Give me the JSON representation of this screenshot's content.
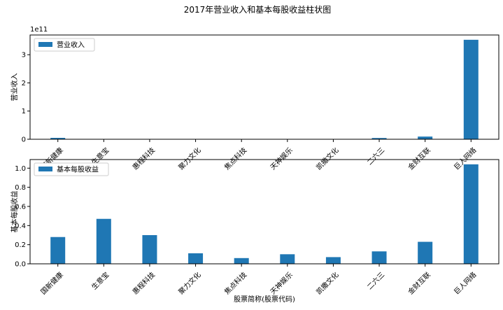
{
  "figure": {
    "title": "2017年营业收入和基本每股收益柱状图",
    "bar_color": "#1f77b4",
    "frame_color": "#000000",
    "background": "#ffffff"
  },
  "chart_data": [
    {
      "type": "bar",
      "categories": [
        "国新健康",
        "生意宝",
        "惠程科技",
        "聚力文化",
        "焦点科技",
        "天神娱乐",
        "凯撒文化",
        "二六三",
        "金财互联",
        "巨人网络"
      ],
      "series": [
        {
          "name": "营业收入",
          "values": [
            5000000000.0,
            200000000.0,
            400000000.0,
            500000000.0,
            300000000.0,
            500000000.0,
            300000000.0,
            4500000000.0,
            9500000000.0,
            353000000000.0
          ]
        }
      ],
      "xlabel": "",
      "ylabel": "营业收入",
      "ylim": [
        0,
        370000000000
      ],
      "yticks": [
        0,
        100000000000,
        200000000000,
        300000000000
      ],
      "ytick_labels": [
        "0",
        "1",
        "2",
        "3"
      ],
      "y_offset_label": "1e11",
      "legend": "upper left",
      "grid": false
    },
    {
      "type": "bar",
      "categories": [
        "国新健康",
        "生意宝",
        "惠程科技",
        "聚力文化",
        "焦点科技",
        "天神娱乐",
        "凯撒文化",
        "二六三",
        "金财互联",
        "巨人网络"
      ],
      "series": [
        {
          "name": "基本每股收益",
          "values": [
            0.28,
            0.47,
            0.3,
            0.11,
            0.06,
            0.1,
            0.07,
            0.13,
            0.23,
            1.04
          ]
        }
      ],
      "xlabel": "股票简称(股票代码)",
      "ylabel": "基本每股收益",
      "ylim": [
        0,
        1.09
      ],
      "yticks": [
        0.0,
        0.2,
        0.4,
        0.6,
        0.8,
        1.0
      ],
      "ytick_labels": [
        "0.0",
        "0.2",
        "0.4",
        "0.6",
        "0.8",
        "1.0"
      ],
      "legend": "upper left",
      "grid": false
    }
  ]
}
